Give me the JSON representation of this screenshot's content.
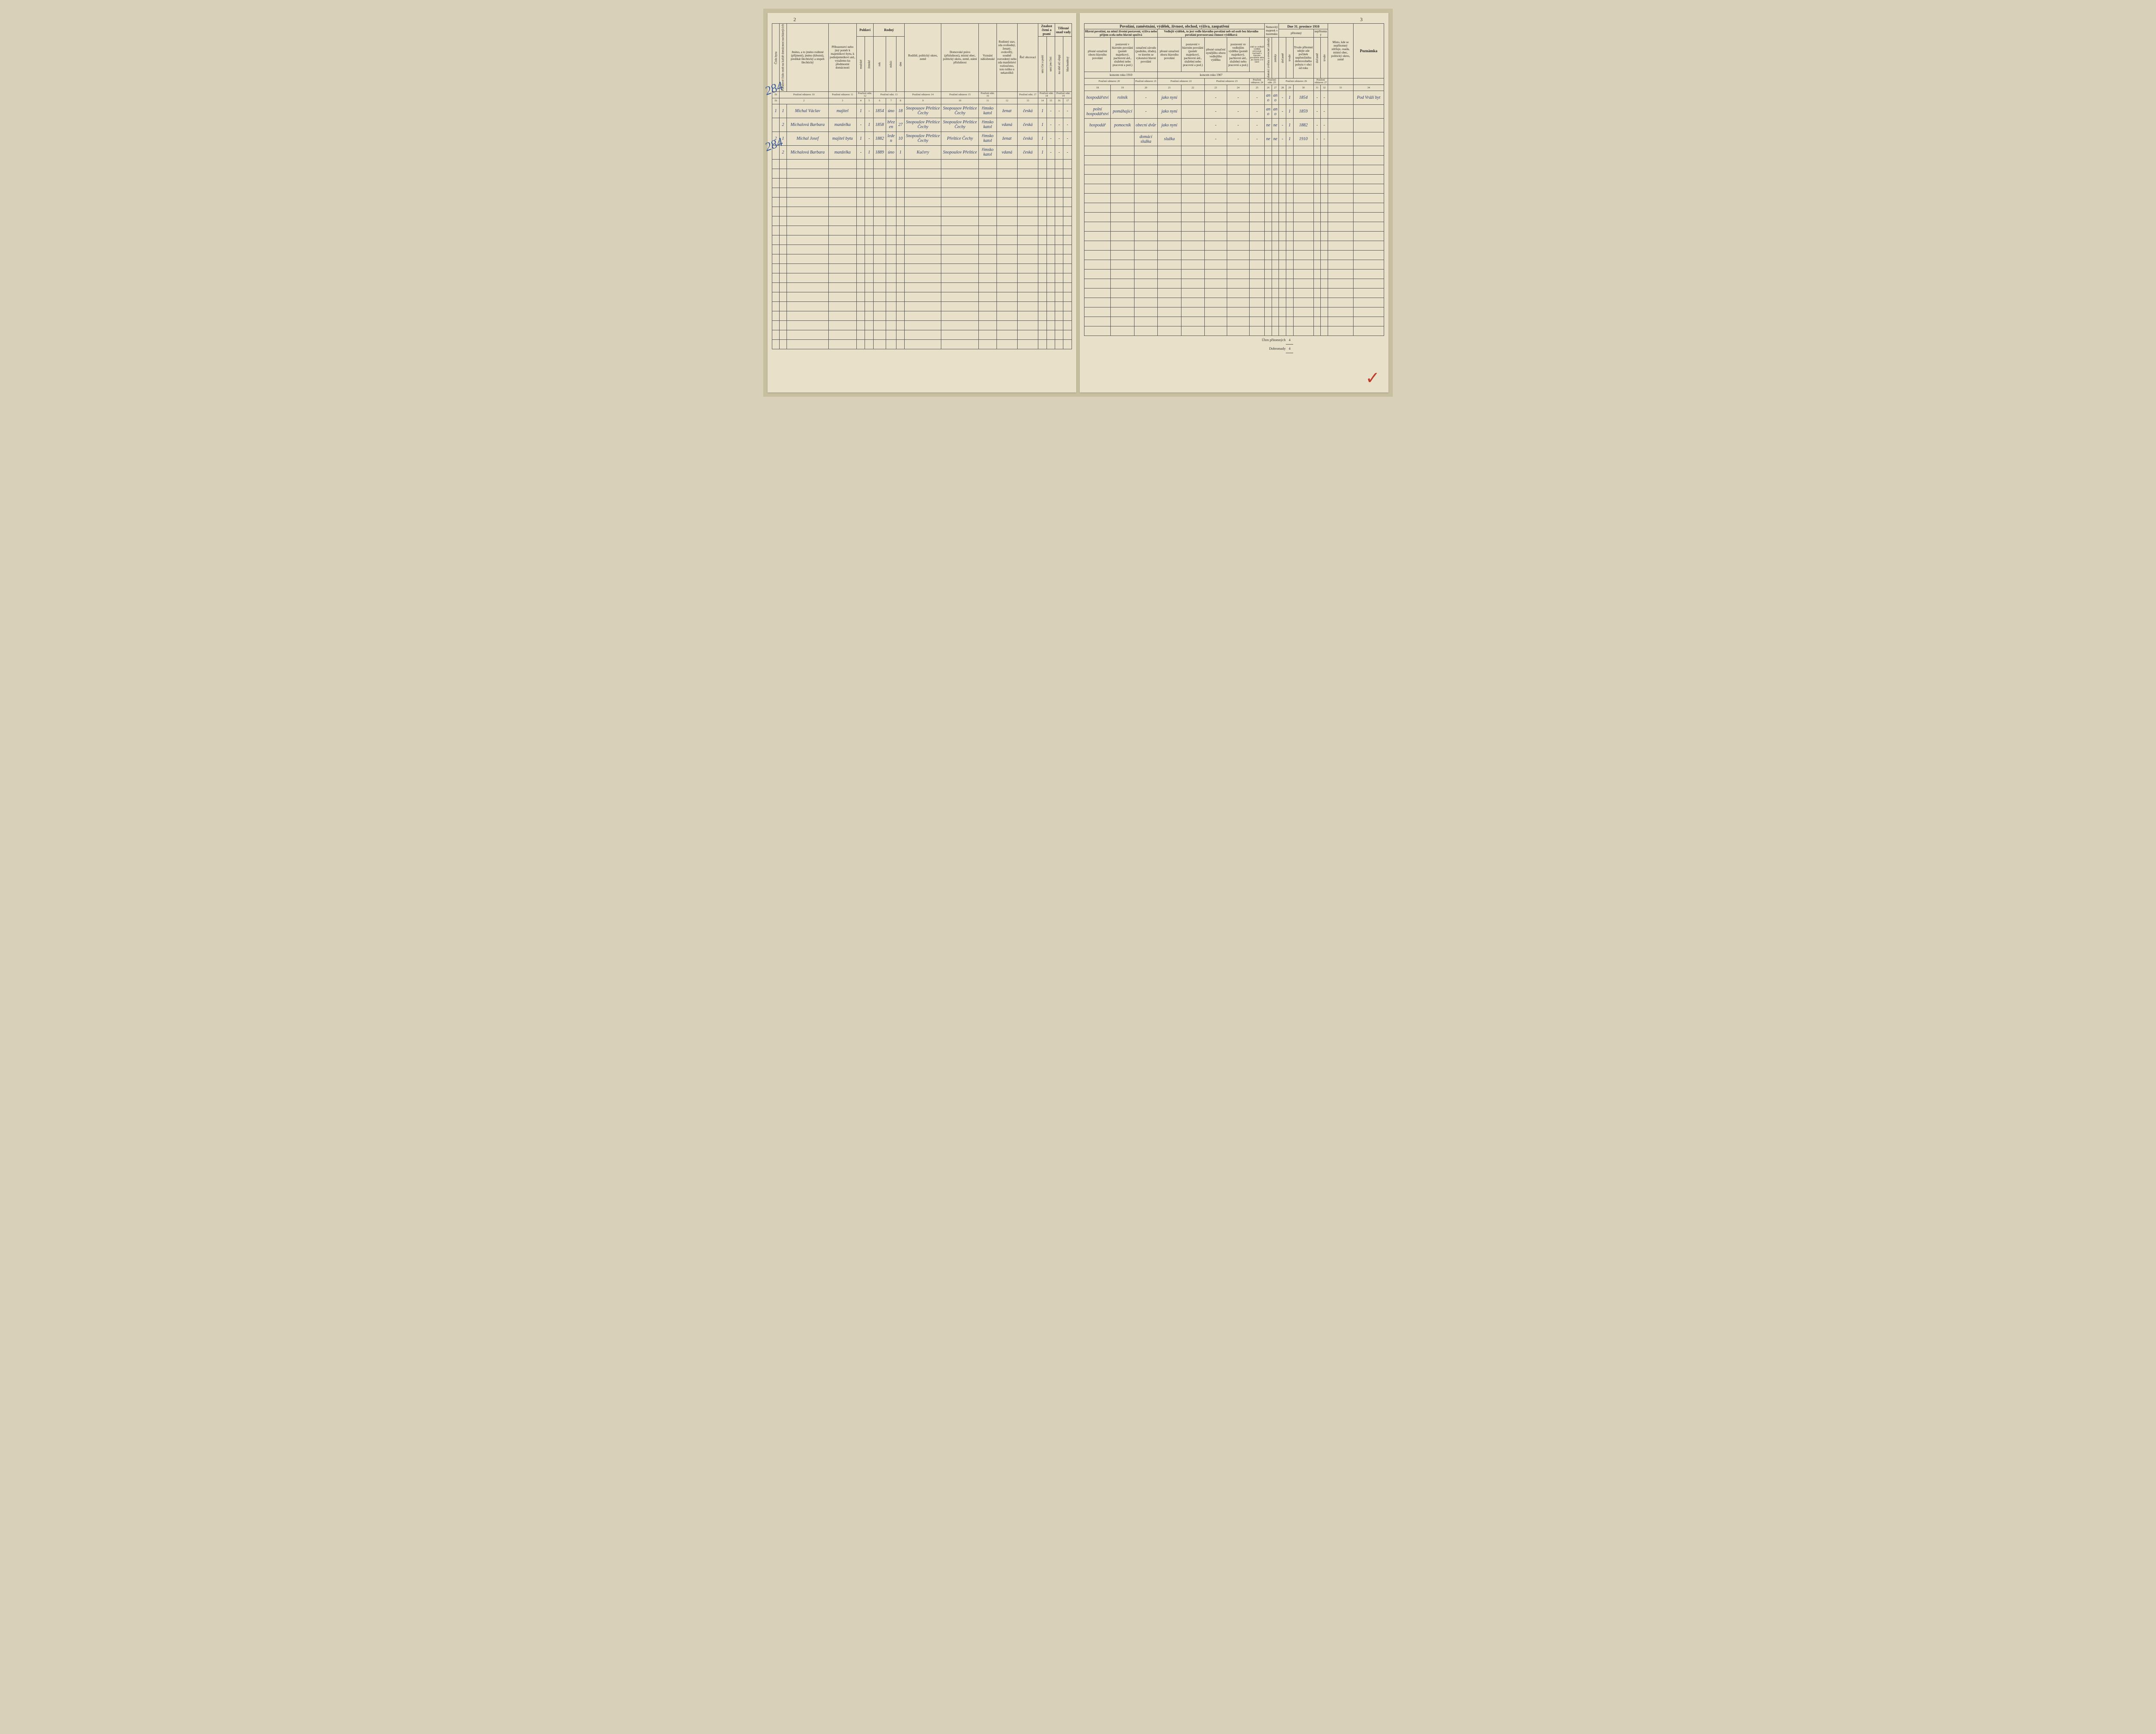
{
  "page_left_num": "2",
  "page_right_num": "3",
  "margin_notes": [
    "284",
    "284"
  ],
  "red_mark": "✓",
  "left": {
    "main_headers": {
      "cislo_bytu": "Číslo bytu",
      "poradove": "Pořadové číslo osob na každé domácnost nacházejících",
      "jmeno": "Jméno, a to jméno rodinné (příjmení), jméno (křestní), predikát šlechtický a stupeň šlechtický",
      "pribuzenstvi": "Příbuzenství nebo jiný poměr k majetníkovi bytu, k podnájemníkovi atd., vytažemo ku předmostní domácnosti",
      "pohlavi": "Pohlaví",
      "muzske": "mužské",
      "zenske": "ženské",
      "rodny": "Rodný",
      "rok": "rok",
      "mesic": "měsíc",
      "den": "den",
      "rodiste": "Rodiště, politický okres, země",
      "domovske": "Domovské právo (příslušnost), místní obec, politický okres, země, státní příslušnost",
      "vyznani": "Vyznání náboženské",
      "rodinny_stav": "Rodinný stav, zda svobodný, ženatý, ovdovělý, soudně rozvedený nebo zda manželství rozloučeno, toto toliko u nekatolíků",
      "rec": "Řeč obcovací",
      "znalost": "Znalost čtení a psaní",
      "umi_cist_psat": "umí číst a psáti",
      "umi_jen_cisti": "umí jen čísti",
      "telesne": "Tělesné snad vady",
      "slepy": "na obě oči slepý",
      "hluchonemy": "hluchoněmý"
    },
    "ref": [
      "1b",
      "Poučení odstavec 10",
      "Poučení odstavec 11",
      "Poučení odst. 12",
      "",
      "Poučení odst. 13",
      "",
      "",
      "Poučení odstavec 14",
      "Poučení odstavec 15",
      "Poučení odst. 16",
      "",
      "Poučení odst. 17",
      "Poučení odst. 18",
      "",
      "Poučení odst. 19",
      ""
    ],
    "col_nums": [
      "1b",
      "2",
      "3",
      "4",
      "5",
      "6",
      "7",
      "8",
      "9",
      "10",
      "11",
      "12",
      "13",
      "14",
      "15",
      "16",
      "17"
    ]
  },
  "right": {
    "top_title": "Povolání, zaměstnání, výdělek, živnost, obchod, výživa, zaopatření",
    "date_header": "Dne 31. prosince 1910",
    "main_headers": {
      "hlavni": "Hlavní povolání, na němž životní postavení, výživa nebo příjem zcela nebo hlavně spočívá",
      "vedlejsi": "Vedlejší výdělek, to jest vedle hlavního povolání neb od osob bez hlavního povolání provozovaná činnost výdělková",
      "nemovity": "Nemovitý majetek v tuzemsku",
      "pritomny": "přítomný",
      "nepritomny": "nepřítomný",
      "misto": "Místo, kde se nepřítomný zdržuje, osada, místní obec, politický okres, země",
      "poznamka": "Poznámka",
      "oznaceni_oboru": "přesné označení oboru hlavního povolání",
      "postaveni_hlavni": "postavení v hlavním povolání (poměr majetkový, pachtovní atd., služební nebo pracovní a pod.)",
      "oznaceni_zavodu": "označení závodu (podniku, úřadu), ve kterém se vykonává hlavní povolání",
      "vedl_oboru": "přesné označení oboru hlavního povolání",
      "vedl_postaveni": "postavení v hlavním povolání (poměr majetkový, pachtovní atd., služební nebo pracovní a pod.)",
      "vedl_nynejsi": "přesné označení nynějšího oboru vedlejšího výdělku",
      "vedl_ve": "postavení ve vedlejším výdělku (poměr majetkový, pachtovní atd., služební nebo pracovní a pod.)",
      "zdali": "zdali se vedlejší výdělek provozuje současně s hlavním povoláním nebo jen časem a ve které",
      "domaci": "domácí zvířata a ovocné zahrady",
      "zemky": "zemky",
      "docasne1": "dočasně",
      "trvale1": "trvale",
      "trvale_pritomni": "Trvale přítomní udejte zde počátek nepřetržitého dobrovolného pobytu v obci od roku",
      "docasne2": "dočasně",
      "trvale2": "trvale",
      "koncem1910": "koncem roku 1910",
      "koncem1907": "koncem roku 1907"
    },
    "ref": [
      "Poučení odstavec 20",
      "Poučení odstavec 21",
      "Poučení odstavec 22",
      "=",
      "Poučení odstavec 23",
      "",
      "Poučení odstavec 24",
      "Poučení odst. 25",
      "Poučení odstavec 26",
      "",
      "",
      "Poučení odstavec 27",
      ""
    ],
    "col_nums": [
      "18",
      "19",
      "20",
      "21",
      "22",
      "23",
      "24",
      "25",
      "26",
      "27",
      "28",
      "29",
      "30",
      "31",
      "32",
      "33",
      "34"
    ],
    "summary_label1": "Úhrn přítomných",
    "summary_label2": "Dohromady",
    "summary_val1": "4",
    "summary_val2": "4"
  },
  "rows": [
    {
      "num": "1",
      "cislo": "1",
      "name": "Michal Václav",
      "rel": "majitel",
      "m": "1",
      "z": "-",
      "rok": "1854",
      "mesic": "úno",
      "den": "18",
      "rodiste": "Snopousov Přeštice Čechy",
      "domov": "Snopousov Přeštice Čechy",
      "vyz": "římsko katol",
      "stav": "ženat",
      "rec": "česká",
      "cp": "1",
      "jc": "-",
      "sl": "-",
      "hl": "-",
      "obor": "hospodářství",
      "post": "rolník",
      "zavod": "-",
      "obor07": "jako nyní",
      "post07": "",
      "nyn": "-",
      "ve": "-",
      "zdali": "-",
      "dom": "ano",
      "zem": "ano",
      "doc": "-",
      "trv": "1",
      "pocatek": "1854",
      "doc2": "-",
      "trv2": "-",
      "misto": "",
      "pozn": "Pod Vráží byt"
    },
    {
      "num": "",
      "cislo": "2",
      "name": "Michalová Barbara",
      "rel": "manželka",
      "m": "-",
      "z": "1",
      "rok": "1858",
      "mesic": "březen",
      "den": "27",
      "rodiste": "Snopoušov Přeštice Čechy",
      "domov": "Snopoušov Přeštice Čechy",
      "vyz": "římsko katol",
      "stav": "vdaná",
      "rec": "česká",
      "cp": "1",
      "jc": "-",
      "sl": "-",
      "hl": "-",
      "obor": "polní hospodářství",
      "post": "pomáhající",
      "zavod": "-",
      "obor07": "jako nyní",
      "post07": "",
      "nyn": "-",
      "ve": "-",
      "zdali": "-",
      "dom": "ano",
      "zem": "ano",
      "doc": "-",
      "trv": "1",
      "pocatek": "1859",
      "doc2": "-",
      "trv2": "-",
      "misto": "",
      "pozn": ""
    },
    {
      "num": "2",
      "cislo": "1",
      "name": "Michal Josef",
      "rel": "majitel bytu",
      "m": "1",
      "z": "-",
      "rok": "1882",
      "mesic": "leden",
      "den": "10",
      "rodiste": "Snopoušov Přeštice Čechy",
      "domov": "Přeštice Čechy",
      "vyz": "římsko katol",
      "stav": "ženat",
      "rec": "česká",
      "cp": "1",
      "jc": "-",
      "sl": "-",
      "hl": "-",
      "obor": "hospodář",
      "post": "pomocník",
      "zavod": "obecní dvůr",
      "obor07": "jako nyní",
      "post07": "",
      "nyn": "-",
      "ve": "-",
      "zdali": "-",
      "dom": "ne",
      "zem": "ne",
      "doc": "-",
      "trv": "1",
      "pocatek": "1882",
      "doc2": "-",
      "trv2": "-",
      "misto": "",
      "pozn": ""
    },
    {
      "num": "",
      "cislo": "2",
      "name": "Michalová Barbara",
      "rel": "manželka",
      "m": "-",
      "z": "1",
      "rok": "1889",
      "mesic": "úno",
      "den": "1",
      "rodiste": "Kučery",
      "domov": "Snopoušov Přeštice",
      "vyz": "římsko katol",
      "stav": "vdaná",
      "rec": "česká",
      "cp": "1",
      "jc": "-",
      "sl": "-",
      "hl": "-",
      "obor": "",
      "post": "",
      "zavod": "domácí služka",
      "obor07": "služka",
      "post07": "",
      "nyn": "-",
      "ve": "-",
      "zdali": "-",
      "dom": "ne",
      "zem": "ne",
      "doc": "-",
      "trv": "1",
      "pocatek": "1910",
      "doc2": "-",
      "trv2": "-",
      "misto": "",
      "pozn": ""
    }
  ]
}
